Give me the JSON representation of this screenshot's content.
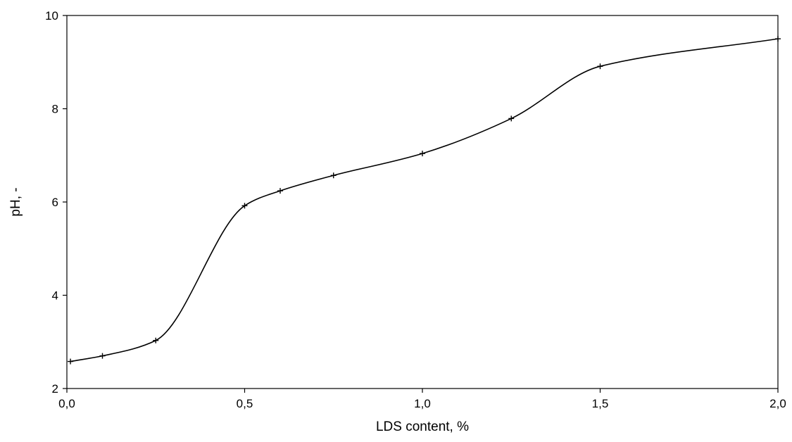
{
  "chart_data": {
    "type": "line",
    "title": "",
    "xlabel": "LDS content, %",
    "ylabel": "pH, -",
    "xlim": [
      0,
      2
    ],
    "ylim": [
      2,
      10
    ],
    "x_ticks": [
      0,
      0.5,
      1,
      1.5,
      2
    ],
    "x_tick_labels": [
      "0,0",
      "0,5",
      "1,0",
      "1,5",
      "2,0"
    ],
    "y_ticks": [
      2,
      4,
      6,
      8,
      10
    ],
    "y_tick_labels": [
      "2",
      "4",
      "6",
      "8",
      "10"
    ],
    "grid": false,
    "legend": "none",
    "series": [
      {
        "x": [
          0.01,
          0.1,
          0.25,
          0.5,
          0.6,
          0.75,
          1.0,
          1.25,
          1.5,
          2.0
        ],
        "y": [
          2.58,
          2.7,
          3.03,
          5.92,
          6.24,
          6.57,
          7.04,
          7.79,
          8.91,
          9.5
        ],
        "color": "#000000",
        "marker": "plus",
        "smooth": true
      }
    ]
  }
}
